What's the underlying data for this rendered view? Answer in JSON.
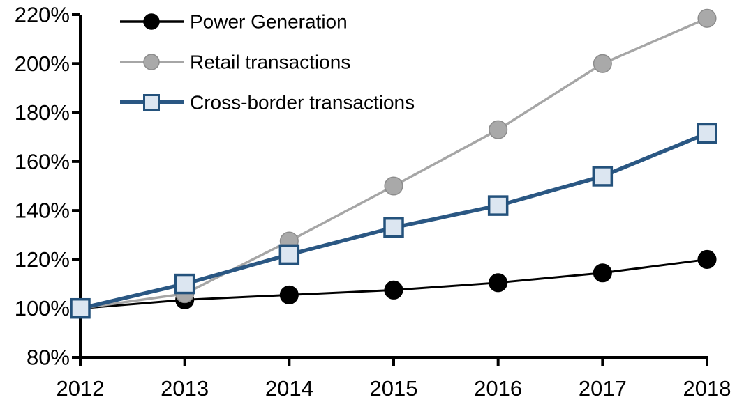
{
  "chart_data": {
    "type": "line",
    "title": "",
    "xlabel": "",
    "ylabel": "",
    "x": [
      2012,
      2013,
      2014,
      2015,
      2016,
      2017,
      2018
    ],
    "series": [
      {
        "name": "Power Generation",
        "values": [
          100,
          103.5,
          105.5,
          107.5,
          110.5,
          114.5,
          120
        ],
        "color": "#000000",
        "marker": "circle",
        "marker_fill": "#000000",
        "marker_stroke": "#000000",
        "line_width": 3
      },
      {
        "name": "Retail transactions",
        "values": [
          100,
          106,
          127.5,
          150,
          173,
          200,
          218.5
        ],
        "color": "#A6A6A6",
        "marker": "circle",
        "marker_fill": "#A9A9A9",
        "marker_stroke": "#8C8C8C",
        "line_width": 3.5
      },
      {
        "name": "Cross-border transactions",
        "values": [
          100,
          110,
          122,
          133,
          142,
          154,
          171.5
        ],
        "color": "#2A5783",
        "marker": "square",
        "marker_fill": "#DCE6F1",
        "marker_stroke": "#24527C",
        "line_width": 5.5
      }
    ],
    "ylim": [
      80,
      220
    ],
    "ytick_step": 20,
    "ytick_suffix": "%",
    "ytick_labels": [
      "80%",
      "100%",
      "120%",
      "140%",
      "160%",
      "180%",
      "200%",
      "220%"
    ],
    "xtick_labels": [
      "2012",
      "2013",
      "2014",
      "2015",
      "2016",
      "2017",
      "2018"
    ],
    "grid": false,
    "legend_position": "top-left",
    "axis_color": "#000000",
    "background_color": "#FFFFFF"
  }
}
